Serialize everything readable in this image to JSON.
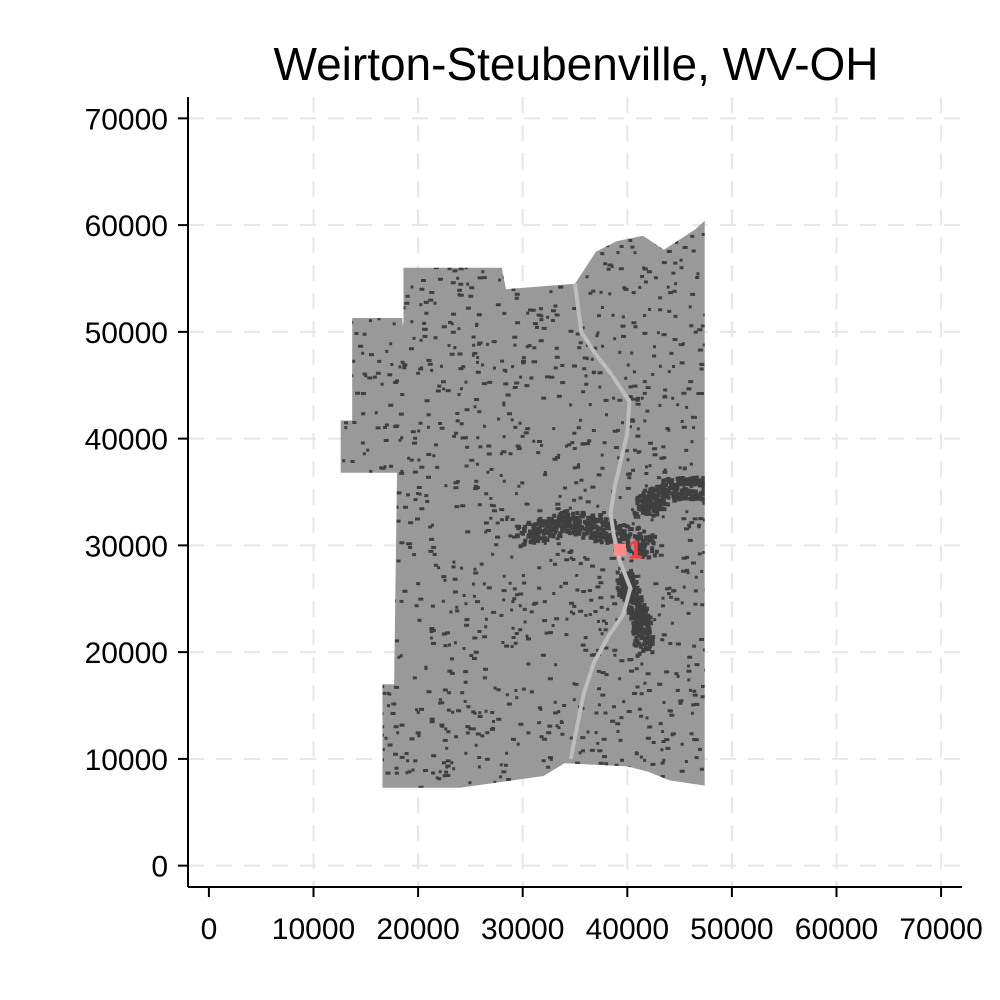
{
  "chart_data": {
    "type": "map",
    "title": "Weirton-Steubenville, WV-OH",
    "xlabel": "",
    "ylabel": "",
    "xlim": [
      -2000,
      72000
    ],
    "ylim": [
      -2000,
      72000
    ],
    "x_ticks": [
      0,
      10000,
      20000,
      30000,
      40000,
      50000,
      60000,
      70000
    ],
    "y_ticks": [
      0,
      10000,
      20000,
      30000,
      40000,
      50000,
      60000,
      70000
    ],
    "x_tick_labels": [
      "0",
      "10000",
      "20000",
      "30000",
      "40000",
      "50000",
      "60000",
      "70000"
    ],
    "y_tick_labels": [
      "0",
      "10000",
      "20000",
      "30000",
      "40000",
      "50000",
      "60000",
      "70000"
    ],
    "grid": true,
    "region_outline": [
      [
        16600,
        7300
      ],
      [
        16600,
        17000
      ],
      [
        17700,
        17000
      ],
      [
        18000,
        38000
      ],
      [
        18000,
        47000
      ],
      [
        17900,
        48000
      ],
      [
        18600,
        51000
      ],
      [
        18600,
        56000
      ],
      [
        28000,
        56000
      ],
      [
        28400,
        54000
      ],
      [
        35000,
        54500
      ],
      [
        37000,
        57500
      ],
      [
        39000,
        58500
      ],
      [
        41500,
        59000
      ],
      [
        43500,
        57700
      ],
      [
        46500,
        59600
      ],
      [
        47400,
        60400
      ],
      [
        47400,
        7500
      ],
      [
        44000,
        8000
      ],
      [
        42000,
        8800
      ],
      [
        40000,
        9300
      ],
      [
        34000,
        9600
      ],
      [
        32000,
        8400
      ],
      [
        24000,
        7300
      ]
    ],
    "west_notch": [
      [
        12600,
        36800
      ],
      [
        12600,
        41700
      ],
      [
        13700,
        41700
      ],
      [
        13700,
        51300
      ],
      [
        18500,
        51300
      ],
      [
        18500,
        36800
      ]
    ],
    "river_path": [
      [
        35000,
        54500
      ],
      [
        35600,
        50000
      ],
      [
        36900,
        48000
      ],
      [
        38500,
        46000
      ],
      [
        40200,
        43500
      ],
      [
        40000,
        40500
      ],
      [
        39400,
        38000
      ],
      [
        38800,
        35500
      ],
      [
        38400,
        33000
      ],
      [
        38700,
        31000
      ],
      [
        39300,
        28500
      ],
      [
        40300,
        26000
      ],
      [
        39600,
        23500
      ],
      [
        38200,
        21500
      ],
      [
        36800,
        19000
      ],
      [
        35800,
        16000
      ],
      [
        35200,
        13000
      ],
      [
        34600,
        10000
      ]
    ],
    "urban_bands": [
      {
        "name": "",
        "points": [
          [
            30000,
            31000
          ],
          [
            34000,
            32500
          ],
          [
            38000,
            31500
          ],
          [
            42000,
            30000
          ]
        ]
      },
      {
        "name": "",
        "points": [
          [
            41000,
            33500
          ],
          [
            44000,
            35500
          ],
          [
            47400,
            35500
          ]
        ]
      },
      {
        "name": "",
        "points": [
          [
            39500,
            27000
          ],
          [
            41000,
            24000
          ],
          [
            41500,
            20500
          ]
        ]
      }
    ],
    "markers": [
      {
        "label": "1",
        "x": 39300,
        "y": 29600,
        "color": "#ff3b3b"
      }
    ],
    "colors": {
      "land": "#999999",
      "developed": "#3f3f3f",
      "water": "#bdbdbd",
      "marker": "#ff3b3b",
      "axis": "#000000",
      "grid": "#e6e6e6"
    }
  }
}
